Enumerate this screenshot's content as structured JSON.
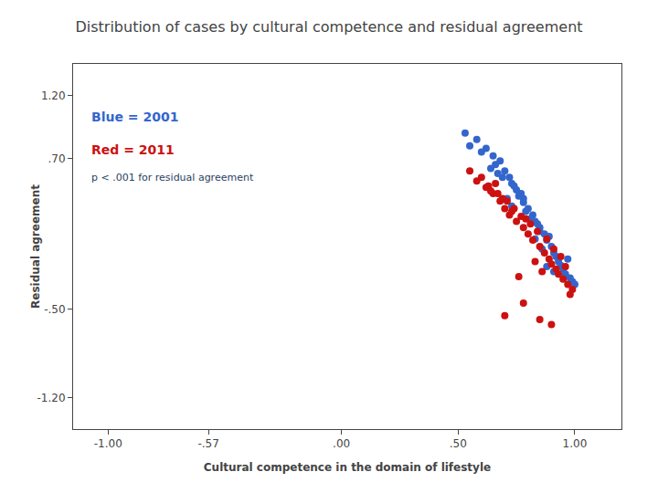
{
  "chart_data": {
    "type": "scatter",
    "title": "Distribution of cases by cultural competence and residual agreement",
    "x_label": "Cultural competence in the domain of lifestyle",
    "y_label": "Residual agreement",
    "xlim": [
      -1.15,
      1.2
    ],
    "ylim": [
      -1.45,
      1.45
    ],
    "xticks": [
      {
        "value": -1.0,
        "label": "-1.00"
      },
      {
        "value": -0.57,
        "label": "-.57"
      },
      {
        "value": 0.0,
        "label": ".00"
      },
      {
        "value": 0.5,
        "label": ".50"
      },
      {
        "value": 1.0,
        "label": "1.00"
      }
    ],
    "yticks": [
      {
        "value": -1.2,
        "label": "-1.20"
      },
      {
        "value": -0.5,
        "label": "-.50"
      },
      {
        "value": 0.7,
        "label": ".70"
      },
      {
        "value": 1.2,
        "label": "1.20"
      }
    ],
    "grid": false,
    "annotations": [
      {
        "text": "Blue = 2001",
        "color": "#3366CC"
      },
      {
        "text": "Red = 2011",
        "color": "#CC1111"
      },
      {
        "text": "p < .001 for residual agreement"
      }
    ],
    "series": [
      {
        "color": "#3366CC",
        "x": [
          0.53,
          0.58,
          0.62,
          0.65,
          0.68,
          0.7,
          0.72,
          0.73,
          0.75,
          0.76,
          0.78,
          0.8,
          0.82,
          0.83,
          0.85,
          0.87,
          0.88,
          0.9,
          0.91,
          0.92,
          0.93,
          0.94,
          0.95,
          0.96,
          0.98,
          0.99,
          1.0,
          0.77,
          0.84,
          0.89,
          0.74,
          0.69,
          0.64,
          0.86,
          0.71,
          0.66,
          0.79,
          0.81,
          0.97,
          0.88,
          0.6,
          0.55,
          0.73,
          0.67,
          0.91,
          0.85,
          0.78,
          0.83
        ],
        "values": [
          0.9,
          0.85,
          0.78,
          0.72,
          0.68,
          0.6,
          0.55,
          0.5,
          0.45,
          0.4,
          0.35,
          0.3,
          0.25,
          0.2,
          0.15,
          0.1,
          0.05,
          0.0,
          -0.05,
          -0.08,
          -0.12,
          -0.15,
          -0.18,
          -0.22,
          -0.25,
          -0.28,
          -0.3,
          0.42,
          0.18,
          0.08,
          0.48,
          0.55,
          0.62,
          -0.02,
          0.38,
          0.65,
          0.28,
          0.22,
          -0.1,
          -0.16,
          0.75,
          0.8,
          0.32,
          0.58,
          -0.2,
          0.12,
          0.38,
          0.06
        ]
      },
      {
        "color": "#CC1111",
        "x": [
          0.58,
          0.62,
          0.65,
          0.68,
          0.7,
          0.72,
          0.75,
          0.78,
          0.8,
          0.82,
          0.85,
          0.87,
          0.89,
          0.9,
          0.92,
          0.93,
          0.95,
          0.97,
          0.99,
          0.63,
          0.67,
          0.71,
          0.74,
          0.77,
          0.81,
          0.84,
          0.88,
          0.91,
          0.94,
          0.96,
          0.6,
          0.55,
          0.73,
          0.86,
          0.79,
          0.69,
          0.64,
          0.83,
          0.76,
          0.98,
          0.66,
          0.7,
          0.85,
          0.9,
          0.78
        ],
        "values": [
          0.52,
          0.47,
          0.42,
          0.36,
          0.3,
          0.25,
          0.2,
          0.15,
          0.1,
          0.05,
          0.0,
          -0.05,
          -0.1,
          -0.14,
          -0.18,
          -0.22,
          -0.26,
          -0.3,
          -0.34,
          0.48,
          0.42,
          0.36,
          0.3,
          0.24,
          0.18,
          0.12,
          0.06,
          -0.02,
          -0.08,
          -0.16,
          0.55,
          0.6,
          0.28,
          -0.2,
          0.22,
          0.38,
          0.44,
          -0.12,
          -0.24,
          -0.38,
          0.5,
          -0.55,
          -0.58,
          -0.62,
          -0.45
        ]
      }
    ]
  }
}
